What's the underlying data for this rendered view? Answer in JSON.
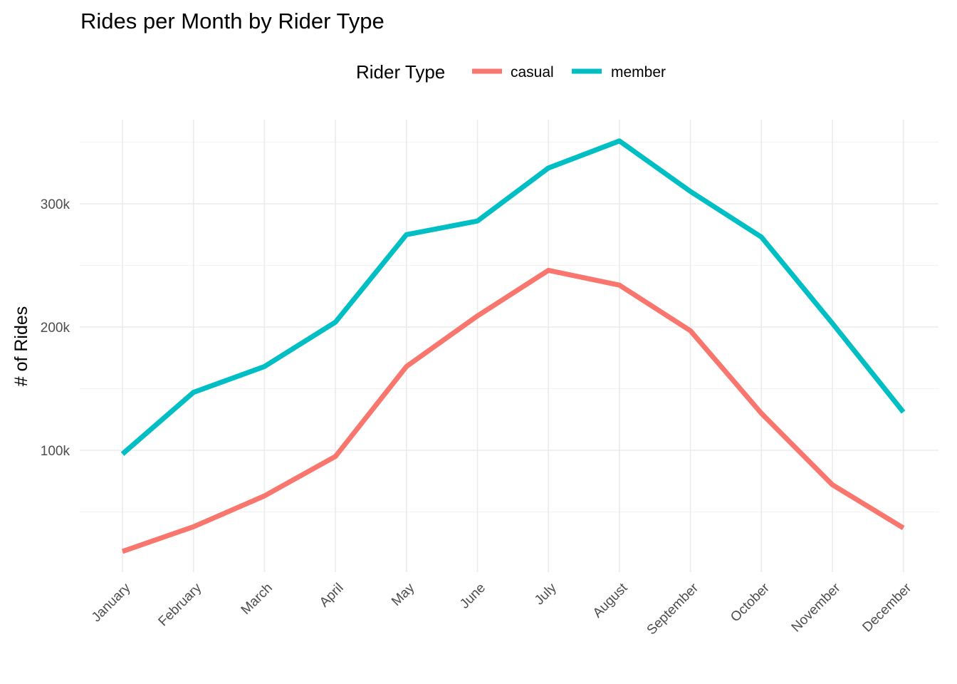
{
  "chart_data": {
    "type": "line",
    "title": "Rides per Month by Rider Type",
    "xlabel": "",
    "ylabel": "# of Rides",
    "categories": [
      "January",
      "February",
      "March",
      "April",
      "May",
      "June",
      "July",
      "August",
      "September",
      "October",
      "November",
      "December"
    ],
    "y_ticks": [
      100000,
      200000,
      300000
    ],
    "y_tick_labels": [
      "100k",
      "200k",
      "300k"
    ],
    "ylim": [
      0,
      355000
    ],
    "grid": true,
    "legend": {
      "title": "Rider Type",
      "placement": "top"
    },
    "series": [
      {
        "name": "casual",
        "color": "#f8766d",
        "values": [
          18000,
          38000,
          63000,
          95000,
          168000,
          209000,
          246000,
          234000,
          197000,
          130000,
          72000,
          37000
        ]
      },
      {
        "name": "member",
        "color": "#00bfc4",
        "values": [
          97000,
          147000,
          168000,
          204000,
          275000,
          286000,
          329000,
          351000,
          310000,
          273000,
          203000,
          131000
        ]
      }
    ]
  }
}
